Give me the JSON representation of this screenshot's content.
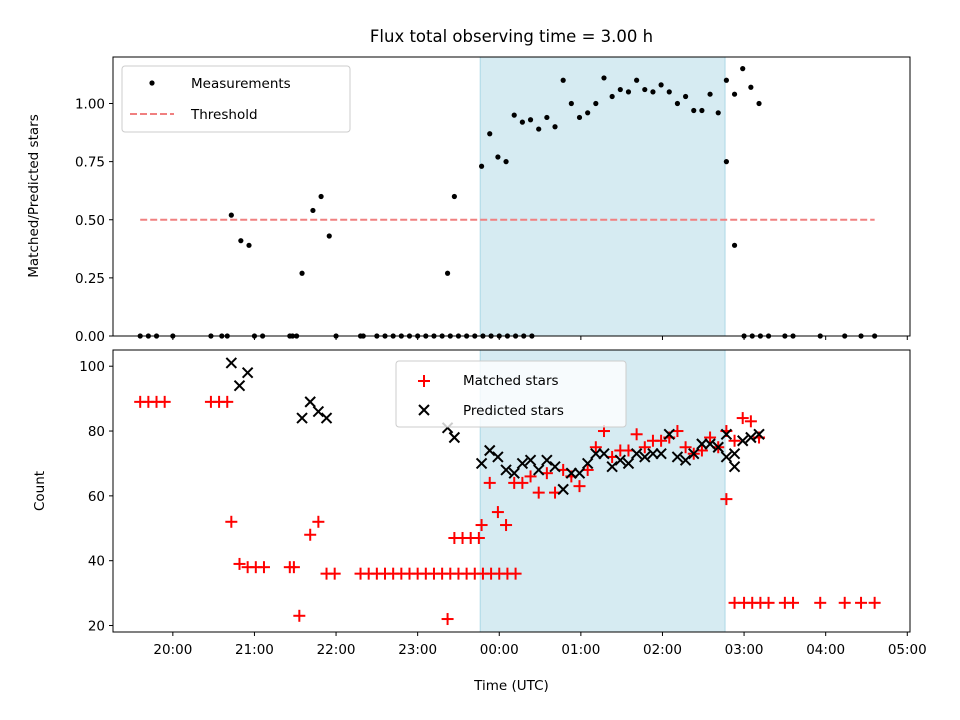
{
  "chart_data": [
    {
      "type": "scatter",
      "title": "Flux total observing time = 3.00 h",
      "ylabel": "Matched/Predicted stars",
      "ylim": [
        0,
        1.2
      ],
      "yticks": [
        "0.00",
        "0.25",
        "0.50",
        "0.75",
        "1.00"
      ],
      "x_range_utc": [
        "19:16",
        "05:02"
      ],
      "shaded_interval": [
        "23:46",
        "02:46"
      ],
      "shade_color": "#add8e6",
      "legend_position": "upper left",
      "series": [
        {
          "name": "Measurements",
          "marker": "dot",
          "color": "#000000",
          "points": [
            [
              "19:36",
              0
            ],
            [
              "19:42",
              0
            ],
            [
              "19:48",
              0
            ],
            [
              "20:00",
              0
            ],
            [
              "20:28",
              0
            ],
            [
              "20:36",
              0
            ],
            [
              "20:40",
              0
            ],
            [
              "20:43",
              0.52
            ],
            [
              "20:50",
              0.41
            ],
            [
              "20:56",
              0.39
            ],
            [
              "21:00",
              0
            ],
            [
              "21:06",
              0
            ],
            [
              "21:26",
              0
            ],
            [
              "21:28",
              0
            ],
            [
              "21:31",
              0
            ],
            [
              "21:35",
              0.27
            ],
            [
              "21:43",
              0.54
            ],
            [
              "21:49",
              0.6
            ],
            [
              "21:55",
              0.43
            ],
            [
              "22:00",
              0
            ],
            [
              "22:18",
              0
            ],
            [
              "22:20",
              0
            ],
            [
              "22:30",
              0
            ],
            [
              "22:36",
              0
            ],
            [
              "22:42",
              0
            ],
            [
              "22:48",
              0
            ],
            [
              "22:54",
              0
            ],
            [
              "23:00",
              0
            ],
            [
              "23:06",
              0
            ],
            [
              "23:12",
              0
            ],
            [
              "23:18",
              0
            ],
            [
              "23:24",
              0
            ],
            [
              "23:30",
              0
            ],
            [
              "23:36",
              0
            ],
            [
              "23:42",
              0
            ],
            [
              "23:48",
              0
            ],
            [
              "23:54",
              0
            ],
            [
              "00:00",
              0
            ],
            [
              "00:06",
              0
            ],
            [
              "00:12",
              0
            ],
            [
              "00:18",
              0
            ],
            [
              "00:24",
              0
            ],
            [
              "23:22",
              0.27
            ],
            [
              "23:27",
              0.6
            ],
            [
              "23:47",
              0.73
            ],
            [
              "23:53",
              0.87
            ],
            [
              "23:59",
              0.77
            ],
            [
              "00:05",
              0.75
            ],
            [
              "00:11",
              0.95
            ],
            [
              "00:17",
              0.92
            ],
            [
              "00:23",
              0.93
            ],
            [
              "00:29",
              0.89
            ],
            [
              "00:35",
              0.94
            ],
            [
              "00:41",
              0.9
            ],
            [
              "00:47",
              1.1
            ],
            [
              "00:53",
              1.0
            ],
            [
              "00:59",
              0.94
            ],
            [
              "01:05",
              0.96
            ],
            [
              "01:11",
              1.0
            ],
            [
              "01:17",
              1.11
            ],
            [
              "01:23",
              1.03
            ],
            [
              "01:29",
              1.06
            ],
            [
              "01:35",
              1.05
            ],
            [
              "01:41",
              1.1
            ],
            [
              "01:47",
              1.06
            ],
            [
              "01:53",
              1.05
            ],
            [
              "01:59",
              1.08
            ],
            [
              "02:05",
              1.05
            ],
            [
              "02:11",
              1.0
            ],
            [
              "02:17",
              1.03
            ],
            [
              "02:23",
              0.97
            ],
            [
              "02:29",
              0.97
            ],
            [
              "02:35",
              1.04
            ],
            [
              "02:41",
              0.96
            ],
            [
              "02:47",
              1.1
            ],
            [
              "02:53",
              1.04
            ],
            [
              "02:59",
              1.15
            ],
            [
              "03:05",
              1.07
            ],
            [
              "03:11",
              1.0
            ],
            [
              "02:47",
              0.75
            ],
            [
              "02:53",
              0.39
            ],
            [
              "03:00",
              0
            ],
            [
              "03:06",
              0
            ],
            [
              "03:12",
              0
            ],
            [
              "03:18",
              0
            ],
            [
              "03:30",
              0
            ],
            [
              "03:36",
              0
            ],
            [
              "03:56",
              0
            ],
            [
              "04:14",
              0
            ],
            [
              "04:26",
              0
            ],
            [
              "04:36",
              0
            ]
          ]
        },
        {
          "name": "Threshold",
          "marker": "dashed-line",
          "color": "#f08080",
          "value": 0.5,
          "x_start": "19:36",
          "x_end": "04:36"
        }
      ]
    },
    {
      "type": "scatter",
      "ylabel": "Count",
      "xlabel": "Time (UTC)",
      "ylim": [
        18,
        105
      ],
      "yticks": [
        "20",
        "40",
        "60",
        "80",
        "100"
      ],
      "xticks": [
        "20:00",
        "21:00",
        "22:00",
        "23:00",
        "00:00",
        "01:00",
        "02:00",
        "03:00",
        "04:00",
        "05:00"
      ],
      "legend_position": "upper center",
      "series": [
        {
          "name": "Matched stars",
          "marker": "plus",
          "color": "#ff0000",
          "points": [
            [
              "19:36",
              89
            ],
            [
              "19:42",
              89
            ],
            [
              "19:48",
              89
            ],
            [
              "19:54",
              89
            ],
            [
              "20:28",
              89
            ],
            [
              "20:34",
              89
            ],
            [
              "20:40",
              89
            ],
            [
              "20:43",
              52
            ],
            [
              "20:49",
              39
            ],
            [
              "20:55",
              38
            ],
            [
              "21:01",
              38
            ],
            [
              "21:07",
              38
            ],
            [
              "21:26",
              38
            ],
            [
              "21:29",
              38
            ],
            [
              "21:33",
              23
            ],
            [
              "21:41",
              48
            ],
            [
              "21:47",
              52
            ],
            [
              "21:53",
              36
            ],
            [
              "21:59",
              36
            ],
            [
              "22:18",
              36
            ],
            [
              "22:24",
              36
            ],
            [
              "22:30",
              36
            ],
            [
              "22:36",
              36
            ],
            [
              "22:42",
              36
            ],
            [
              "22:48",
              36
            ],
            [
              "22:54",
              36
            ],
            [
              "23:00",
              36
            ],
            [
              "23:06",
              36
            ],
            [
              "23:12",
              36
            ],
            [
              "23:18",
              36
            ],
            [
              "23:24",
              36
            ],
            [
              "23:30",
              36
            ],
            [
              "23:36",
              36
            ],
            [
              "23:42",
              36
            ],
            [
              "23:48",
              36
            ],
            [
              "23:54",
              36
            ],
            [
              "00:00",
              36
            ],
            [
              "00:06",
              36
            ],
            [
              "00:12",
              36
            ],
            [
              "23:22",
              22
            ],
            [
              "23:27",
              47
            ],
            [
              "23:33",
              47
            ],
            [
              "23:39",
              47
            ],
            [
              "23:45",
              47
            ],
            [
              "23:47",
              51
            ],
            [
              "23:53",
              64
            ],
            [
              "23:59",
              55
            ],
            [
              "00:05",
              51
            ],
            [
              "00:11",
              64
            ],
            [
              "00:17",
              64
            ],
            [
              "00:23",
              66
            ],
            [
              "00:29",
              61
            ],
            [
              "00:35",
              67
            ],
            [
              "00:41",
              61
            ],
            [
              "00:47",
              68
            ],
            [
              "00:53",
              66
            ],
            [
              "00:59",
              63
            ],
            [
              "01:05",
              68
            ],
            [
              "01:11",
              75
            ],
            [
              "01:17",
              80
            ],
            [
              "01:23",
              72
            ],
            [
              "01:29",
              74
            ],
            [
              "01:35",
              74
            ],
            [
              "01:41",
              79
            ],
            [
              "01:47",
              75
            ],
            [
              "01:53",
              77
            ],
            [
              "01:59",
              77
            ],
            [
              "02:05",
              78
            ],
            [
              "02:11",
              80
            ],
            [
              "02:17",
              75
            ],
            [
              "02:23",
              73
            ],
            [
              "02:29",
              74
            ],
            [
              "02:35",
              78
            ],
            [
              "02:41",
              75
            ],
            [
              "02:47",
              80
            ],
            [
              "02:53",
              77
            ],
            [
              "02:59",
              84
            ],
            [
              "03:05",
              83
            ],
            [
              "03:11",
              78
            ],
            [
              "02:47",
              59
            ],
            [
              "02:53",
              27
            ],
            [
              "03:00",
              27
            ],
            [
              "03:06",
              27
            ],
            [
              "03:12",
              27
            ],
            [
              "03:18",
              27
            ],
            [
              "03:30",
              27
            ],
            [
              "03:36",
              27
            ],
            [
              "03:56",
              27
            ],
            [
              "04:14",
              27
            ],
            [
              "04:26",
              27
            ],
            [
              "04:36",
              27
            ]
          ]
        },
        {
          "name": "Predicted stars",
          "marker": "x",
          "color": "#000000",
          "points": [
            [
              "20:43",
              101
            ],
            [
              "20:49",
              94
            ],
            [
              "20:55",
              98
            ],
            [
              "21:35",
              84
            ],
            [
              "21:41",
              89
            ],
            [
              "21:47",
              86
            ],
            [
              "21:53",
              84
            ],
            [
              "23:22",
              81
            ],
            [
              "23:27",
              78
            ],
            [
              "23:47",
              70
            ],
            [
              "23:53",
              74
            ],
            [
              "23:59",
              72
            ],
            [
              "00:05",
              68
            ],
            [
              "00:11",
              67
            ],
            [
              "00:17",
              70
            ],
            [
              "00:23",
              71
            ],
            [
              "00:29",
              68
            ],
            [
              "00:35",
              71
            ],
            [
              "00:41",
              69
            ],
            [
              "00:47",
              62
            ],
            [
              "00:53",
              67
            ],
            [
              "00:59",
              67
            ],
            [
              "01:05",
              70
            ],
            [
              "01:11",
              73
            ],
            [
              "01:17",
              73
            ],
            [
              "01:23",
              69
            ],
            [
              "01:29",
              71
            ],
            [
              "01:35",
              70
            ],
            [
              "01:41",
              73
            ],
            [
              "01:47",
              72
            ],
            [
              "01:53",
              73
            ],
            [
              "01:59",
              73
            ],
            [
              "02:05",
              79
            ],
            [
              "02:11",
              72
            ],
            [
              "02:17",
              71
            ],
            [
              "02:23",
              73
            ],
            [
              "02:29",
              76
            ],
            [
              "02:35",
              76
            ],
            [
              "02:41",
              75
            ],
            [
              "02:47",
              72
            ],
            [
              "02:53",
              73
            ],
            [
              "02:59",
              77
            ],
            [
              "03:05",
              78
            ],
            [
              "03:11",
              79
            ],
            [
              "02:47",
              79
            ],
            [
              "02:53",
              69
            ]
          ]
        }
      ]
    }
  ]
}
